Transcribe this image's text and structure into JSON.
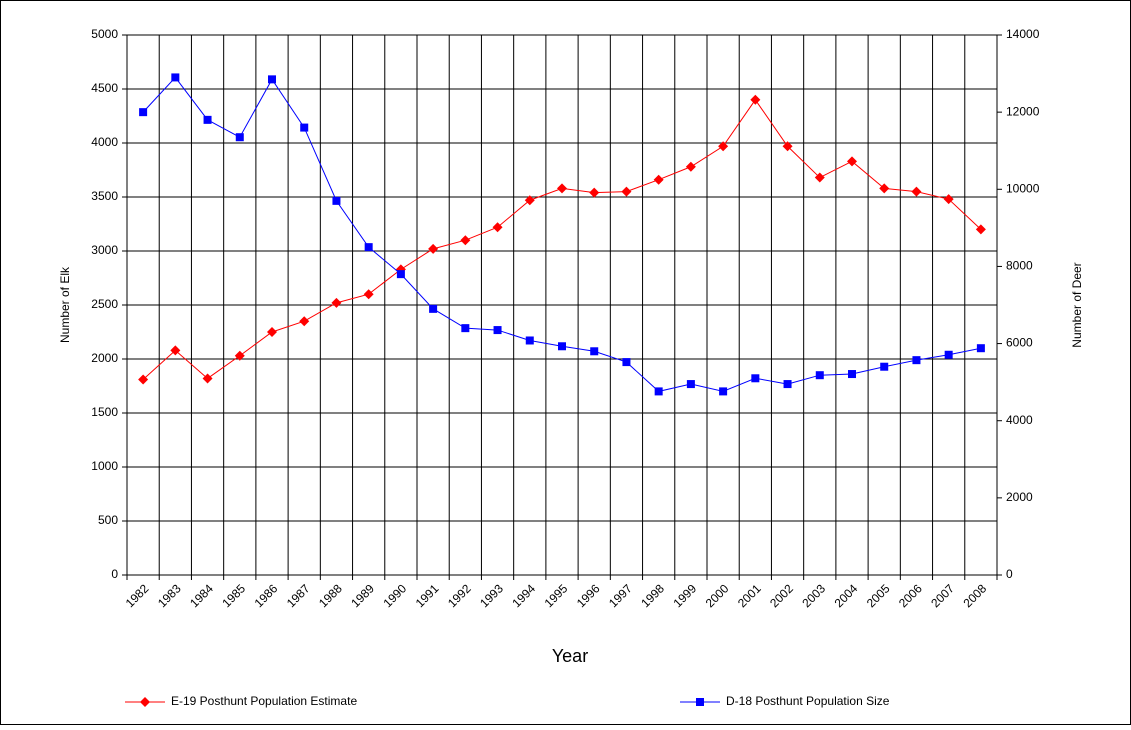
{
  "chart_data": {
    "type": "line",
    "x_label": "Year",
    "y_label": "Number of Elk",
    "y2_label": "Number of Deer",
    "categories": [
      "1982",
      "1983",
      "1984",
      "1985",
      "1986",
      "1987",
      "1988",
      "1989",
      "1990",
      "1991",
      "1992",
      "1993",
      "1994",
      "1995",
      "1996",
      "1997",
      "1998",
      "1999",
      "2000",
      "2001",
      "2002",
      "2003",
      "2004",
      "2005",
      "2006",
      "2007",
      "2008"
    ],
    "series": [
      {
        "name": "E-19 Posthunt Population Estimate",
        "color": "#ff0000",
        "marker": "diamond",
        "values": [
          1810,
          2080,
          1820,
          2030,
          2250,
          2350,
          2520,
          2600,
          2830,
          3020,
          3100,
          3220,
          3470,
          3580,
          3540,
          3550,
          3660,
          3780,
          3970,
          4400,
          3970,
          3680,
          3830,
          3580,
          3550,
          3480,
          3200
        ]
      },
      {
        "name": "D-18 Posthunt Population Size",
        "color": "#0000ff",
        "marker": "square",
        "axis": "y2",
        "values": [
          12000,
          12900,
          11800,
          11350,
          12850,
          11600,
          9700,
          8500,
          7800,
          6900,
          6400,
          6350,
          6080,
          5930,
          5800,
          5520,
          4760,
          4950,
          4760,
          5100,
          4950,
          5180,
          5210,
          5400,
          5570,
          5710,
          5880
        ]
      }
    ],
    "ylim": [
      0,
      5000
    ],
    "yticks": [
      0,
      500,
      1000,
      1500,
      2000,
      2500,
      3000,
      3500,
      4000,
      4500,
      5000
    ],
    "y2lim": [
      0,
      14000
    ],
    "y2ticks": [
      0,
      2000,
      4000,
      6000,
      8000,
      10000,
      12000,
      14000
    ],
    "grid": true,
    "legend": "bottom"
  }
}
